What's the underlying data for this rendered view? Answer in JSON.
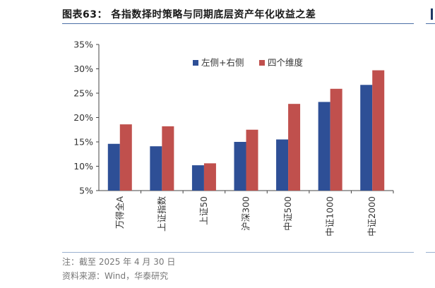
{
  "header": {
    "title": "图表63：  各指数择时策略与同期底层资产年化收益之差"
  },
  "footer": {
    "note": "注：截至 2025 年 4 月 30 日",
    "source": "资料来源：Wind，华泰研究"
  },
  "chart_data": {
    "type": "bar",
    "categories": [
      "万得全A",
      "上证指数",
      "上证50",
      "沪深300",
      "中证500",
      "中证1000",
      "中证2000"
    ],
    "series": [
      {
        "name": "左侧+右侧",
        "color": "#2e4f96",
        "values": [
          14.6,
          14.1,
          10.2,
          15.0,
          15.5,
          23.2,
          26.7
        ]
      },
      {
        "name": "四个维度",
        "color": "#c0504d",
        "values": [
          18.6,
          18.2,
          10.6,
          17.5,
          22.8,
          25.9,
          29.7
        ]
      }
    ],
    "ylim": [
      5,
      35
    ],
    "yticks": [
      "5%",
      "10%",
      "15%",
      "20%",
      "25%",
      "30%",
      "35%"
    ],
    "ytick_values": [
      5,
      10,
      15,
      20,
      25,
      30,
      35
    ],
    "grid": false,
    "legend_position": "top-center"
  }
}
